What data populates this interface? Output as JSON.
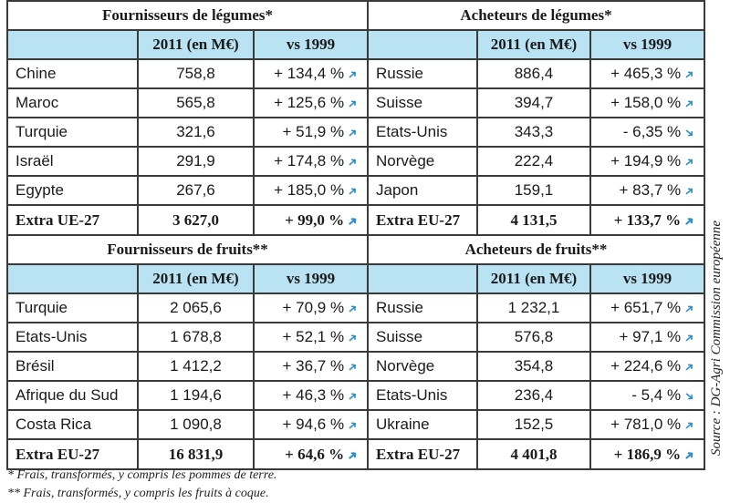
{
  "sections": [
    {
      "left": {
        "title": "Fournisseurs de légumes*",
        "col_value": "2011 (en M€)",
        "col_change": "vs 1999",
        "rows": [
          {
            "name": "Chine",
            "value": "758,8",
            "change": "+ 134,4 %",
            "trend": "up"
          },
          {
            "name": "Maroc",
            "value": "565,8",
            "change": "+ 125,6 %",
            "trend": "up"
          },
          {
            "name": "Turquie",
            "value": "321,6",
            "change": "+ 51,9 %",
            "trend": "up"
          },
          {
            "name": "Israël",
            "value": "291,9",
            "change": "+ 174,8 %",
            "trend": "up"
          },
          {
            "name": "Egypte",
            "value": "267,6",
            "change": "+ 185,0 %",
            "trend": "up"
          }
        ],
        "total": {
          "name": "Extra UE-27",
          "value": "3 627,0",
          "change": "+ 99,0 %",
          "trend": "up"
        }
      },
      "right": {
        "title": "Acheteurs de légumes*",
        "col_value": "2011 (en M€)",
        "col_change": "vs 1999",
        "rows": [
          {
            "name": "Russie",
            "value": "886,4",
            "change": "+ 465,3 %",
            "trend": "up"
          },
          {
            "name": "Suisse",
            "value": "394,7",
            "change": "+ 158,0 %",
            "trend": "up"
          },
          {
            "name": "Etats-Unis",
            "value": "343,3",
            "change": "- 6,35 %",
            "trend": "down"
          },
          {
            "name": "Norvège",
            "value": "222,4",
            "change": "+ 194,9 %",
            "trend": "up"
          },
          {
            "name": "Japon",
            "value": "159,1",
            "change": "+ 83,7 %",
            "trend": "up"
          }
        ],
        "total": {
          "name": "Extra EU-27",
          "value": "4 131,5",
          "change": "+ 133,7 %",
          "trend": "up"
        }
      }
    },
    {
      "left": {
        "title": "Fournisseurs de fruits**",
        "col_value": "2011 (en M€)",
        "col_change": "vs 1999",
        "rows": [
          {
            "name": "Turquie",
            "value": "2 065,6",
            "change": "+ 70,9 %",
            "trend": "up"
          },
          {
            "name": "Etats-Unis",
            "value": "1 678,8",
            "change": "+ 52,1 %",
            "trend": "up"
          },
          {
            "name": "Brésil",
            "value": "1 412,2",
            "change": "+ 36,7 %",
            "trend": "up"
          },
          {
            "name": "Afrique du Sud",
            "value": "1 194,6",
            "change": "+ 46,3 %",
            "trend": "up"
          },
          {
            "name": "Costa Rica",
            "value": "1 090,8",
            "change": "+ 94,6 %",
            "trend": "up"
          }
        ],
        "total": {
          "name": "Extra EU-27",
          "value": "16 831,9",
          "change": "+ 64,6 %",
          "trend": "up"
        }
      },
      "right": {
        "title": "Acheteurs de fruits**",
        "col_value": "2011 (en M€)",
        "col_change": "vs 1999",
        "rows": [
          {
            "name": "Russie",
            "value": "1 232,1",
            "change": "+ 651,7 %",
            "trend": "up"
          },
          {
            "name": "Suisse",
            "value": "576,8",
            "change": "+ 97,1 %",
            "trend": "up"
          },
          {
            "name": "Norvège",
            "value": "354,8",
            "change": "+ 224,6 %",
            "trend": "up"
          },
          {
            "name": "Etats-Unis",
            "value": "236,4",
            "change": "- 5,4 %",
            "trend": "down"
          },
          {
            "name": "Ukraine",
            "value": "152,5",
            "change": "+ 781,0 %",
            "trend": "up"
          }
        ],
        "total": {
          "name": "Extra EU-27",
          "value": "4 401,8",
          "change": "+ 186,9 %",
          "trend": "up"
        }
      }
    }
  ],
  "source": "Source : DG-Agri Commission européenne",
  "notes": [
    "* Frais, transformés, y compris les pommes de terre.",
    "** Frais, transformés, y compris les fruits à coque."
  ],
  "icons": {
    "trend_up": "arrow-up-right-icon",
    "trend_down": "arrow-down-right-icon"
  },
  "colors": {
    "header_bg": "#b9e2f3",
    "arrow": "#2f8fd0"
  }
}
